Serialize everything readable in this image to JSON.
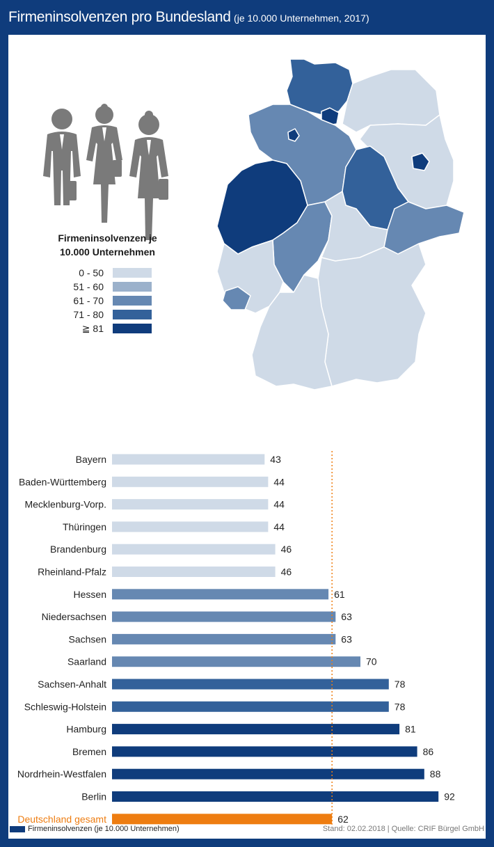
{
  "header": {
    "title": "Firmeninsolvenzen pro Bundesland",
    "subtitle": "(je 10.000 Unternehmen, 2017)"
  },
  "icons": [
    "businessman-icon",
    "businesswoman-icon",
    "businesswoman-icon"
  ],
  "legend": {
    "title_line1": "Firmeninsolvenzen je",
    "title_line2": "10.000 Unternehmen",
    "items": [
      {
        "label": "0 - 50",
        "color": "#cfdae7"
      },
      {
        "label": "51 - 60",
        "color": "#9bb1cb"
      },
      {
        "label": "61 - 70",
        "color": "#6688b2"
      },
      {
        "label": "71 - 80",
        "color": "#33619a"
      },
      {
        "label": "≧ 81",
        "color": "#0f3c7c"
      }
    ]
  },
  "chart_data": {
    "type": "bar",
    "orientation": "horizontal",
    "categories": [
      "Bayern",
      "Baden-Württemberg",
      "Mecklenburg-Vorp.",
      "Thüringen",
      "Brandenburg",
      "Rheinland-Pfalz",
      "Hessen",
      "Niedersachsen",
      "Sachsen",
      "Saarland",
      "Sachsen-Anhalt",
      "Schleswig-Holstein",
      "Hamburg",
      "Bremen",
      "Nordrhein-Westfalen",
      "Berlin",
      "Deutschland gesamt"
    ],
    "values": [
      43,
      44,
      44,
      44,
      46,
      46,
      61,
      63,
      63,
      70,
      78,
      78,
      81,
      86,
      88,
      92,
      62
    ],
    "bar_colors": [
      "#cfdae7",
      "#cfdae7",
      "#cfdae7",
      "#cfdae7",
      "#cfdae7",
      "#cfdae7",
      "#6688b2",
      "#6688b2",
      "#6688b2",
      "#6688b2",
      "#33619a",
      "#33619a",
      "#0f3c7c",
      "#0f3c7c",
      "#0f3c7c",
      "#0f3c7c",
      "#ee7d11"
    ],
    "highlight_label_color": "#ee7d11",
    "reference_line": {
      "value": 62,
      "style": "dotted",
      "color": "#ee7d11"
    },
    "xlim": [
      0,
      100
    ],
    "xticks": [
      0,
      10,
      20,
      30,
      40,
      50,
      60,
      70,
      80,
      90,
      100
    ],
    "series": [
      {
        "name": "Firmeninsolvenzen (je 10.000 Unternehmen)"
      }
    ],
    "legend_position": "bottom-left"
  },
  "footer": {
    "legend_label": "Firmeninsolvenzen (je 10.000 Unternehmen)",
    "source": "Stand: 02.02.2018 | Quelle: CRIF Bürgel GmbH"
  }
}
